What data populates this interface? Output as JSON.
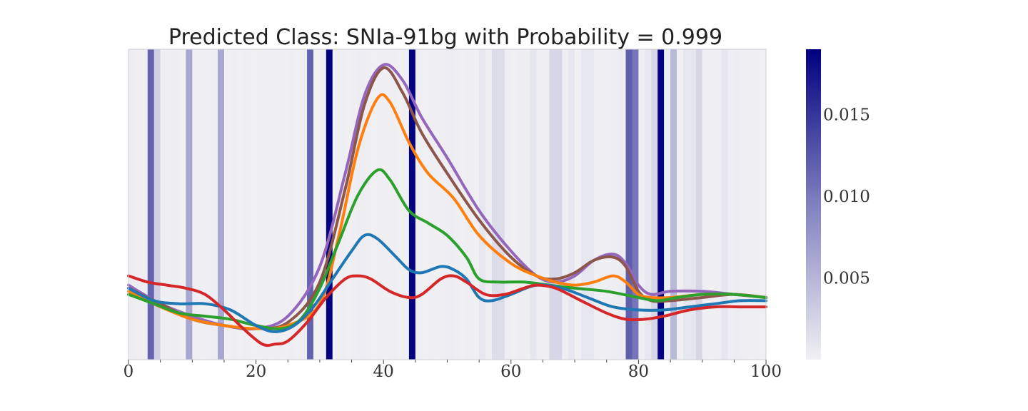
{
  "chart_data": {
    "type": "line",
    "title": "Predicted Class: SNIa-91bg with Probability = 0.999",
    "xlabel": "",
    "ylabel": "",
    "xlim": [
      0,
      100
    ],
    "x_ticks": [
      "0",
      "20",
      "40",
      "60",
      "80",
      "100"
    ],
    "y_axis_labels_visible": false,
    "grid": false,
    "legend": "none",
    "background_heatmap": {
      "description": "attention weight per timestep bin",
      "bins": 100,
      "base_color": "#efeff2",
      "cmap_low": "#f1f1f4",
      "cmap_high": "#000080",
      "weights": [
        0.0003,
        0.0002,
        0.0002,
        0.0112,
        0.0026,
        0.0001,
        0.0002,
        0.0003,
        0.0001,
        0.0058,
        0.0002,
        0.0001,
        0.0002,
        0.0003,
        0.0058,
        0.0001,
        0.0002,
        0.0001,
        0.0002,
        0.0001,
        0.0001,
        0.0002,
        0.0001,
        0.0002,
        0.0001,
        0.0002,
        0.0001,
        0.0002,
        0.0112,
        0.0001,
        0.0002,
        0.0188,
        0.0001,
        0.0002,
        0.0001,
        0.0002,
        0.0003,
        0.0002,
        0.0001,
        0.0002,
        0.0001,
        0.0002,
        0.0001,
        0.0002,
        0.0188,
        0.0002,
        0.0001,
        0.0002,
        0.0001,
        0.0002,
        0.0003,
        0.0002,
        0.0001,
        0.0002,
        0.0001,
        0.0009,
        0.0002,
        0.0016,
        0.0016,
        0.0002,
        0.0001,
        0.0003,
        0.0002,
        0.0009,
        0.0002,
        0.0001,
        0.0021,
        0.0021,
        0.0003,
        0.0009,
        0.0001,
        0.0009,
        0.0009,
        0.0002,
        0.0001,
        0.0002,
        0.0003,
        0.0004,
        0.0115,
        0.0098,
        0.0002,
        0.0009,
        0.0021,
        0.0188,
        0.0004,
        0.0045,
        0.0001,
        0.0009,
        0.0009,
        0.0021,
        0.0002,
        0.0001,
        0.0002,
        0.0009,
        0.0002,
        0.0003,
        0.0002,
        0.0001,
        0.0002,
        0.0001
      ]
    },
    "colorbar": {
      "min": 0.0,
      "max": 0.019,
      "ticks": [
        "0.005",
        "0.010",
        "0.015"
      ],
      "tick_values": [
        0.005,
        0.01,
        0.015
      ]
    },
    "y_range": [
      0,
      100
    ],
    "series": [
      {
        "color": "#9467bd",
        "points": [
          [
            0,
            24
          ],
          [
            5,
            18
          ],
          [
            10,
            14
          ],
          [
            15,
            11
          ],
          [
            20,
            10
          ],
          [
            25,
            14
          ],
          [
            30,
            30
          ],
          [
            34,
            60
          ],
          [
            37,
            85
          ],
          [
            40,
            95
          ],
          [
            43,
            90
          ],
          [
            46,
            78
          ],
          [
            50,
            65
          ],
          [
            55,
            48
          ],
          [
            60,
            35
          ],
          [
            64,
            27
          ],
          [
            67,
            25
          ],
          [
            70,
            27
          ],
          [
            73,
            32
          ],
          [
            76,
            34
          ],
          [
            78,
            31
          ],
          [
            80,
            24
          ],
          [
            82,
            21
          ],
          [
            85,
            22
          ],
          [
            90,
            22
          ],
          [
            95,
            21
          ],
          [
            100,
            20
          ]
        ]
      },
      {
        "color": "#8c564b",
        "points": [
          [
            0,
            23
          ],
          [
            5,
            18
          ],
          [
            10,
            13
          ],
          [
            15,
            11
          ],
          [
            20,
            10
          ],
          [
            25,
            12
          ],
          [
            30,
            25
          ],
          [
            34,
            55
          ],
          [
            37,
            82
          ],
          [
            40,
            94
          ],
          [
            43,
            86
          ],
          [
            46,
            73
          ],
          [
            50,
            60
          ],
          [
            55,
            45
          ],
          [
            60,
            33
          ],
          [
            64,
            27
          ],
          [
            67,
            26
          ],
          [
            70,
            28
          ],
          [
            73,
            32
          ],
          [
            76,
            33
          ],
          [
            78,
            30
          ],
          [
            80,
            22
          ],
          [
            82,
            19
          ],
          [
            85,
            19
          ],
          [
            90,
            20
          ],
          [
            95,
            21
          ],
          [
            100,
            20
          ]
        ]
      },
      {
        "color": "#ff7f0e",
        "points": [
          [
            0,
            22
          ],
          [
            5,
            17
          ],
          [
            10,
            13
          ],
          [
            15,
            11
          ],
          [
            20,
            10
          ],
          [
            25,
            11
          ],
          [
            30,
            18
          ],
          [
            33,
            40
          ],
          [
            36,
            68
          ],
          [
            39,
            84
          ],
          [
            41,
            83
          ],
          [
            44,
            70
          ],
          [
            47,
            60
          ],
          [
            51,
            52
          ],
          [
            55,
            40
          ],
          [
            60,
            31
          ],
          [
            64,
            27
          ],
          [
            67,
            25
          ],
          [
            70,
            24
          ],
          [
            73,
            25
          ],
          [
            76,
            27
          ],
          [
            78,
            25
          ],
          [
            80,
            21
          ],
          [
            82,
            20
          ],
          [
            85,
            20
          ],
          [
            90,
            21
          ],
          [
            95,
            21
          ],
          [
            100,
            20
          ]
        ]
      },
      {
        "color": "#2ca02c",
        "points": [
          [
            0,
            21
          ],
          [
            4,
            18
          ],
          [
            8,
            15
          ],
          [
            12,
            14
          ],
          [
            16,
            13
          ],
          [
            20,
            11
          ],
          [
            24,
            10
          ],
          [
            27,
            13
          ],
          [
            30,
            23
          ],
          [
            33,
            38
          ],
          [
            36,
            53
          ],
          [
            39,
            61
          ],
          [
            41,
            58
          ],
          [
            44,
            48
          ],
          [
            47,
            44
          ],
          [
            50,
            40
          ],
          [
            53,
            33
          ],
          [
            55,
            26
          ],
          [
            58,
            25
          ],
          [
            62,
            25
          ],
          [
            66,
            24
          ],
          [
            70,
            23
          ],
          [
            75,
            22
          ],
          [
            80,
            20
          ],
          [
            83,
            19
          ],
          [
            86,
            20
          ],
          [
            90,
            21
          ],
          [
            95,
            21
          ],
          [
            100,
            20
          ]
        ]
      },
      {
        "color": "#1f77b4",
        "points": [
          [
            0,
            23
          ],
          [
            4,
            19
          ],
          [
            8,
            18
          ],
          [
            12,
            18
          ],
          [
            16,
            16
          ],
          [
            20,
            11
          ],
          [
            23,
            9
          ],
          [
            26,
            11
          ],
          [
            29,
            17
          ],
          [
            32,
            26
          ],
          [
            35,
            35
          ],
          [
            37,
            40
          ],
          [
            39,
            39
          ],
          [
            42,
            33
          ],
          [
            44,
            29
          ],
          [
            46,
            28
          ],
          [
            49,
            30
          ],
          [
            51,
            29
          ],
          [
            53,
            26
          ],
          [
            55,
            20
          ],
          [
            57,
            19
          ],
          [
            60,
            21
          ],
          [
            64,
            24
          ],
          [
            68,
            23
          ],
          [
            72,
            20
          ],
          [
            76,
            17
          ],
          [
            80,
            16
          ],
          [
            84,
            16
          ],
          [
            88,
            17
          ],
          [
            92,
            18
          ],
          [
            96,
            19
          ],
          [
            100,
            19
          ]
        ]
      },
      {
        "color": "#d62728",
        "points": [
          [
            0,
            27
          ],
          [
            3,
            25
          ],
          [
            6,
            24
          ],
          [
            9,
            23
          ],
          [
            12,
            21
          ],
          [
            15,
            16
          ],
          [
            18,
            10
          ],
          [
            21,
            5
          ],
          [
            23,
            5
          ],
          [
            25,
            6
          ],
          [
            28,
            12
          ],
          [
            31,
            20
          ],
          [
            34,
            26
          ],
          [
            36,
            27
          ],
          [
            38,
            26
          ],
          [
            41,
            22
          ],
          [
            44,
            20
          ],
          [
            46,
            21
          ],
          [
            49,
            26
          ],
          [
            51,
            27
          ],
          [
            53,
            25
          ],
          [
            56,
            21
          ],
          [
            59,
            21
          ],
          [
            62,
            23
          ],
          [
            64,
            24
          ],
          [
            67,
            23
          ],
          [
            71,
            19
          ],
          [
            75,
            15
          ],
          [
            78,
            13
          ],
          [
            81,
            13
          ],
          [
            84,
            14
          ],
          [
            88,
            16
          ],
          [
            92,
            17
          ],
          [
            96,
            17
          ],
          [
            100,
            17
          ]
        ]
      }
    ]
  }
}
